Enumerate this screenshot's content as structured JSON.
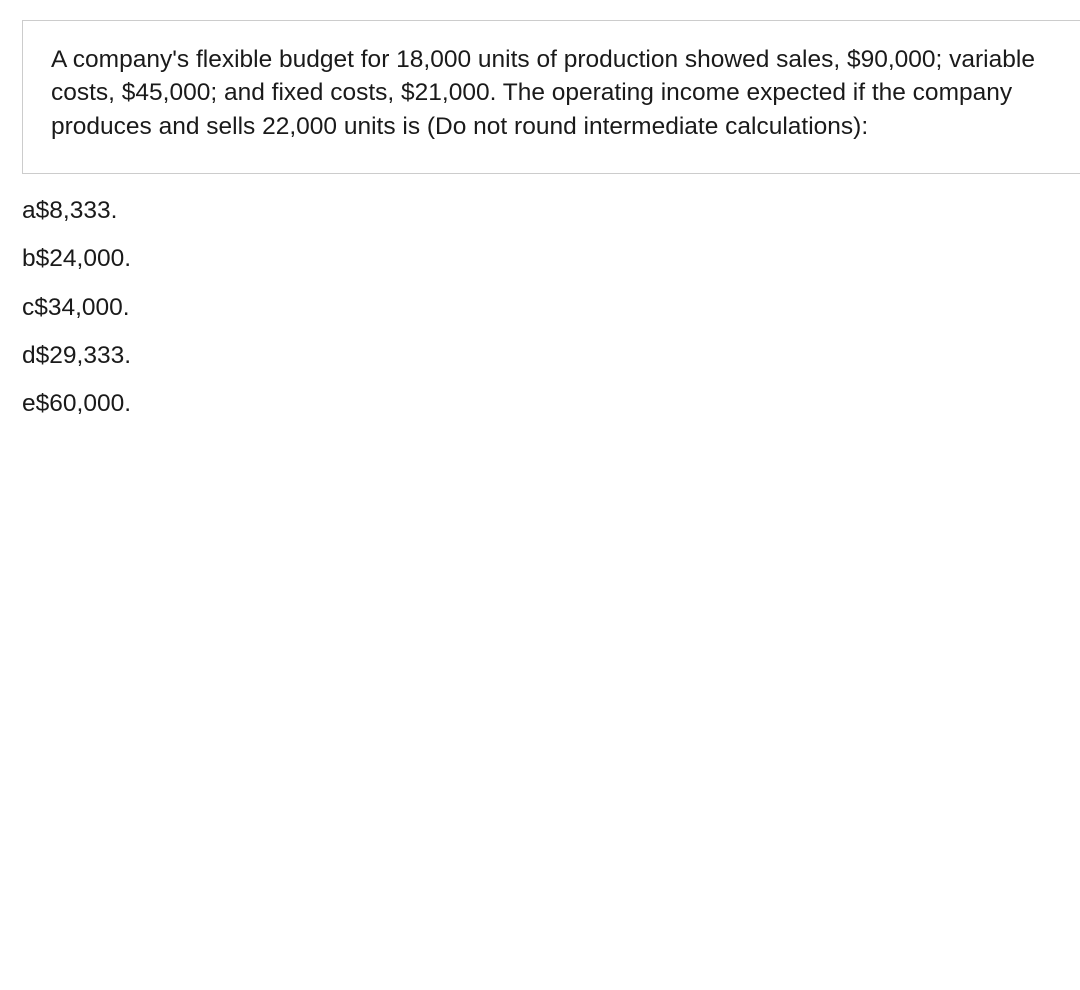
{
  "question": {
    "text": "A company's flexible budget for 18,000 units of production showed sales, $90,000; variable costs, $45,000; and fixed costs, $21,000. The operating income expected if the company produces and sells 22,000 units is (Do not round intermediate calculations):"
  },
  "answers": [
    {
      "letter": "a",
      "value": "$8,333."
    },
    {
      "letter": "b",
      "value": "$24,000."
    },
    {
      "letter": "c",
      "value": "$34,000."
    },
    {
      "letter": "d",
      "value": "$29,333."
    },
    {
      "letter": "e",
      "value": "$60,000."
    }
  ]
}
